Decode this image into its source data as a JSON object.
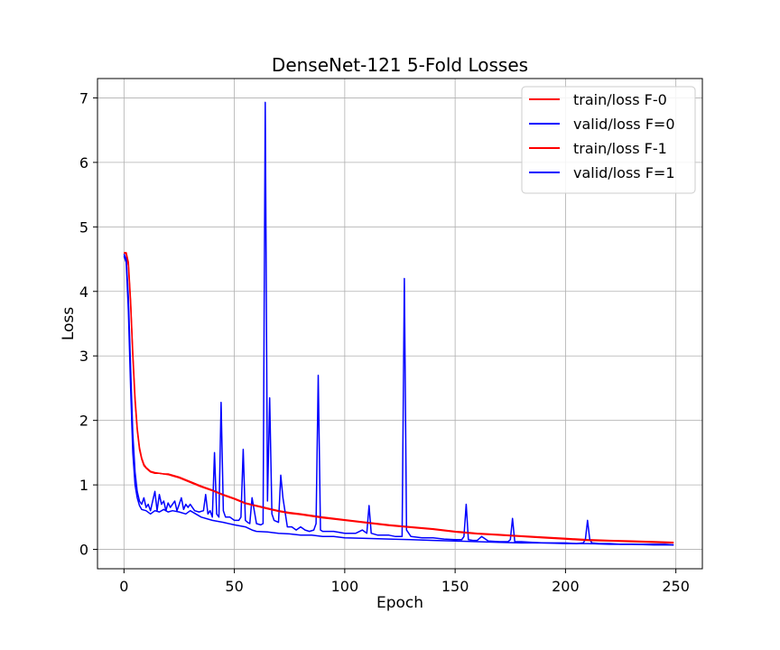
{
  "chart_data": {
    "type": "line",
    "title": "DenseNet-121 5-Fold Losses",
    "xlabel": "Epoch",
    "ylabel": "Loss",
    "xlim": [
      -12,
      262
    ],
    "ylim": [
      -0.3,
      7.3
    ],
    "xticks": [
      0,
      50,
      100,
      150,
      200,
      250
    ],
    "yticks": [
      0,
      1,
      2,
      3,
      4,
      5,
      6,
      7
    ],
    "grid": true,
    "legend_position": "top-right",
    "series": [
      {
        "name": "train/loss F-0",
        "color": "#ff0000",
        "x": [
          0,
          1,
          2,
          3,
          4,
          5,
          6,
          7,
          8,
          9,
          10,
          12,
          14,
          16,
          18,
          20,
          22,
          25,
          30,
          35,
          40,
          45,
          50,
          55,
          60,
          65,
          70,
          75,
          80,
          90,
          100,
          110,
          120,
          130,
          140,
          150,
          160,
          170,
          180,
          190,
          200,
          210,
          220,
          230,
          240,
          249
        ],
        "y": [
          4.6,
          4.58,
          4.4,
          3.8,
          3.0,
          2.3,
          1.85,
          1.55,
          1.4,
          1.3,
          1.26,
          1.2,
          1.18,
          1.18,
          1.17,
          1.17,
          1.15,
          1.12,
          1.05,
          0.98,
          0.92,
          0.85,
          0.79,
          0.72,
          0.68,
          0.64,
          0.6,
          0.57,
          0.55,
          0.5,
          0.46,
          0.42,
          0.38,
          0.35,
          0.32,
          0.28,
          0.25,
          0.23,
          0.21,
          0.19,
          0.17,
          0.15,
          0.14,
          0.13,
          0.12,
          0.11
        ]
      },
      {
        "name": "valid/loss F=0",
        "color": "#0000ff",
        "x": [
          0,
          1,
          2,
          3,
          4,
          5,
          6,
          7,
          8,
          9,
          10,
          11,
          12,
          13,
          14,
          15,
          16,
          17,
          18,
          19,
          20,
          21,
          22,
          23,
          24,
          25,
          26,
          27,
          28,
          29,
          30,
          32,
          34,
          36,
          37,
          38,
          39,
          40,
          41,
          42,
          43,
          44,
          45,
          46,
          48,
          50,
          52,
          53,
          54,
          55,
          56,
          57,
          58,
          60,
          62,
          63,
          64,
          65,
          66,
          67,
          68,
          70,
          71,
          72,
          74,
          76,
          78,
          80,
          82,
          84,
          86,
          87,
          88,
          89,
          90,
          95,
          100,
          105,
          108,
          110,
          111,
          112,
          115,
          120,
          123,
          125,
          126,
          127,
          128,
          130,
          135,
          140,
          145,
          150,
          153,
          154,
          155,
          156,
          158,
          160,
          162,
          165,
          170,
          174,
          175,
          176,
          177,
          180,
          185,
          190,
          195,
          200,
          205,
          208,
          209,
          210,
          211,
          212,
          215,
          220,
          225,
          230,
          235,
          240,
          245,
          249
        ],
        "y": [
          4.58,
          4.5,
          3.9,
          2.8,
          1.8,
          1.2,
          0.9,
          0.75,
          0.7,
          0.8,
          0.65,
          0.7,
          0.6,
          0.75,
          0.9,
          0.6,
          0.85,
          0.7,
          0.75,
          0.6,
          0.72,
          0.65,
          0.7,
          0.75,
          0.6,
          0.7,
          0.8,
          0.62,
          0.7,
          0.65,
          0.7,
          0.6,
          0.58,
          0.6,
          0.85,
          0.55,
          0.6,
          0.5,
          1.5,
          0.55,
          0.5,
          2.28,
          0.6,
          0.5,
          0.5,
          0.45,
          0.45,
          0.5,
          1.55,
          0.45,
          0.42,
          0.4,
          0.8,
          0.4,
          0.38,
          0.4,
          6.93,
          0.75,
          2.35,
          0.55,
          0.45,
          0.42,
          1.15,
          0.8,
          0.35,
          0.35,
          0.3,
          0.35,
          0.3,
          0.28,
          0.3,
          0.4,
          2.7,
          0.3,
          0.28,
          0.28,
          0.25,
          0.25,
          0.3,
          0.25,
          0.68,
          0.25,
          0.22,
          0.22,
          0.2,
          0.2,
          0.2,
          4.2,
          0.3,
          0.2,
          0.18,
          0.18,
          0.16,
          0.15,
          0.15,
          0.2,
          0.7,
          0.15,
          0.14,
          0.14,
          0.2,
          0.13,
          0.12,
          0.12,
          0.15,
          0.48,
          0.12,
          0.12,
          0.11,
          0.1,
          0.1,
          0.1,
          0.09,
          0.1,
          0.15,
          0.45,
          0.15,
          0.1,
          0.09,
          0.09,
          0.08,
          0.08,
          0.08,
          0.08,
          0.08,
          0.07
        ]
      },
      {
        "name": "train/loss F-1",
        "color": "#ff0000",
        "x": [
          0,
          1,
          2,
          3,
          4,
          5,
          6,
          7,
          8,
          9,
          10,
          12,
          14,
          16,
          18,
          20,
          22,
          25,
          30,
          35,
          40,
          45,
          50,
          55,
          60,
          65,
          70,
          75,
          80,
          90,
          100,
          110,
          120,
          130,
          140,
          150,
          160,
          170,
          180,
          190,
          200,
          210,
          220,
          230,
          240,
          249
        ],
        "y": [
          4.6,
          4.6,
          4.45,
          3.85,
          3.05,
          2.35,
          1.88,
          1.58,
          1.42,
          1.32,
          1.27,
          1.21,
          1.19,
          1.18,
          1.17,
          1.16,
          1.14,
          1.11,
          1.04,
          0.97,
          0.91,
          0.84,
          0.78,
          0.71,
          0.67,
          0.63,
          0.59,
          0.56,
          0.54,
          0.49,
          0.45,
          0.41,
          0.37,
          0.34,
          0.31,
          0.27,
          0.24,
          0.22,
          0.2,
          0.18,
          0.16,
          0.14,
          0.13,
          0.12,
          0.11,
          0.1
        ]
      },
      {
        "name": "valid/loss F=1",
        "color": "#0000ff",
        "x": [
          0,
          1,
          2,
          3,
          4,
          5,
          6,
          7,
          8,
          10,
          12,
          14,
          16,
          18,
          20,
          22,
          25,
          28,
          30,
          35,
          40,
          45,
          50,
          55,
          58,
          60,
          65,
          70,
          75,
          80,
          85,
          90,
          95,
          100,
          110,
          120,
          130,
          140,
          150,
          160,
          170,
          180,
          190,
          200,
          210,
          220,
          230,
          240,
          249
        ],
        "y": [
          4.55,
          4.45,
          3.7,
          2.5,
          1.5,
          1.0,
          0.8,
          0.68,
          0.62,
          0.6,
          0.55,
          0.6,
          0.58,
          0.62,
          0.58,
          0.6,
          0.58,
          0.55,
          0.6,
          0.5,
          0.45,
          0.42,
          0.38,
          0.35,
          0.3,
          0.28,
          0.27,
          0.25,
          0.24,
          0.22,
          0.22,
          0.2,
          0.2,
          0.18,
          0.17,
          0.16,
          0.15,
          0.14,
          0.13,
          0.12,
          0.11,
          0.1,
          0.1,
          0.09,
          0.09,
          0.08,
          0.08,
          0.07,
          0.07
        ]
      }
    ]
  }
}
